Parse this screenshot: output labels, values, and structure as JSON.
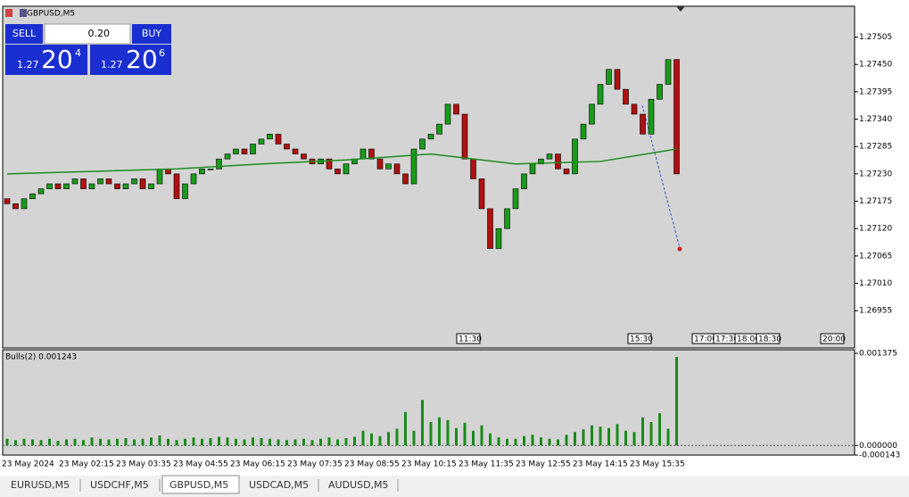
{
  "window": {
    "title": "GBPUSD,M5"
  },
  "trade_panel": {
    "sell": "SELL",
    "buy": "BUY",
    "lot": "0.20",
    "sell_price": {
      "big": "1.27",
      "main": "20",
      "small": "4"
    },
    "buy_price": {
      "big": "1.27",
      "main": "20",
      "small": "6"
    }
  },
  "chart_data": {
    "type": "candlestick",
    "open_first": 1.2718,
    "closes": [
      1.2717,
      1.2716,
      1.2718,
      1.2719,
      1.272,
      1.2721,
      1.272,
      1.2721,
      1.2722,
      1.272,
      1.2721,
      1.2722,
      1.2721,
      1.272,
      1.2721,
      1.2722,
      1.272,
      1.2721,
      1.2724,
      1.2723,
      1.2718,
      1.2721,
      1.2723,
      1.2724,
      1.2724,
      1.2726,
      1.2727,
      1.2728,
      1.2727,
      1.2729,
      1.273,
      1.2731,
      1.2729,
      1.2728,
      1.2727,
      1.2726,
      1.2725,
      1.2726,
      1.2724,
      1.2723,
      1.2725,
      1.2726,
      1.2728,
      1.2726,
      1.2724,
      1.2725,
      1.2723,
      1.2721,
      1.2728,
      1.273,
      1.2731,
      1.2733,
      1.2737,
      1.2735,
      1.2726,
      1.2722,
      1.2716,
      1.2708,
      1.2712,
      1.2716,
      1.272,
      1.2723,
      1.2725,
      1.2726,
      1.2727,
      1.2724,
      1.2723,
      1.273,
      1.2733,
      1.2737,
      1.2741,
      1.2744,
      1.274,
      1.2737,
      1.2735,
      1.2731,
      1.2738,
      1.2741,
      1.2746,
      1.2723
    ],
    "up_color": "#1a9a1a",
    "down_color": "#b01010",
    "ma": {
      "color": "#1e8c1e",
      "x": [
        0,
        10,
        20,
        30,
        40,
        50,
        60,
        70,
        79
      ],
      "values": [
        1.2723,
        1.27235,
        1.2724,
        1.2725,
        1.27258,
        1.2727,
        1.2725,
        1.27255,
        1.2728
      ]
    },
    "ylim": [
      1.2688,
      1.27567
    ],
    "yticks": [
      {
        "value": 1.27505,
        "label": "1.27505"
      },
      {
        "value": 1.2745,
        "label": "1.27450"
      },
      {
        "value": 1.27395,
        "label": "1.27395"
      },
      {
        "value": 1.2734,
        "label": "1.27340"
      },
      {
        "value": 1.27285,
        "label": "1.27285"
      },
      {
        "value": 1.2723,
        "label": "1.27230"
      },
      {
        "value": 1.27175,
        "label": "1.27175"
      },
      {
        "value": 1.2712,
        "label": "1.27120"
      },
      {
        "value": 1.27065,
        "label": "1.27065"
      },
      {
        "value": 1.2701,
        "label": "1.27010"
      },
      {
        "value": 1.26955,
        "label": "1.26955"
      }
    ],
    "time_markers": [
      "11:30",
      "15:30",
      "17:00",
      "17:30",
      "18:00",
      "18:30",
      "20:00"
    ],
    "xticks": [
      "23 May 2024",
      "23 May 02:15",
      "23 May 03:35",
      "23 May 04:55",
      "23 May 06:15",
      "23 May 07:35",
      "23 May 08:55",
      "23 May 10:15",
      "23 May 11:35",
      "23 May 12:55",
      "23 May 14:15",
      "23 May 15:35"
    ]
  },
  "indicator": {
    "type": "bar",
    "label": "Bulls(2) 0.001243",
    "color": "#1a8a1a",
    "values": [
      0.0001,
      8e-05,
      0.0001,
      9e-05,
      8e-05,
      0.0001,
      7e-05,
      9e-05,
      0.0001,
      8e-05,
      0.00012,
      0.0001,
      9e-05,
      0.0001,
      0.00011,
      9e-05,
      0.0001,
      0.00012,
      0.00015,
      0.0001,
      8e-05,
      0.0001,
      0.00012,
      0.0001,
      0.00011,
      0.00013,
      0.00012,
      0.0001,
      9e-05,
      0.00012,
      0.00011,
      0.0001,
      9e-05,
      8e-05,
      9e-05,
      0.0001,
      8e-05,
      0.0001,
      0.00012,
      9e-05,
      0.00011,
      0.00013,
      0.00022,
      0.00018,
      0.00014,
      0.0002,
      0.00025,
      0.0005,
      0.00022,
      0.00068,
      0.00035,
      0.00042,
      0.00038,
      0.00026,
      0.00034,
      0.00022,
      0.0003,
      0.00018,
      0.00012,
      0.0001,
      0.0001,
      0.00014,
      0.00016,
      0.00012,
      0.0001,
      9e-05,
      0.00016,
      0.0002,
      0.00024,
      0.0003,
      0.00028,
      0.00026,
      0.00032,
      0.00022,
      0.0002,
      0.00042,
      0.00035,
      0.00048,
      0.00025,
      0.00132
    ],
    "ylim": [
      -0.000143,
      0.001375
    ],
    "yticks": [
      0.001375,
      {
        "value": 0,
        "label": "0.000000"
      },
      -0.000143
    ]
  },
  "tabs": [
    "EURUSD,M5",
    "USDCHF,M5",
    "GBPUSD,M5",
    "USDCAD,M5",
    "AUDUSD,M5"
  ],
  "active_tab": 2
}
